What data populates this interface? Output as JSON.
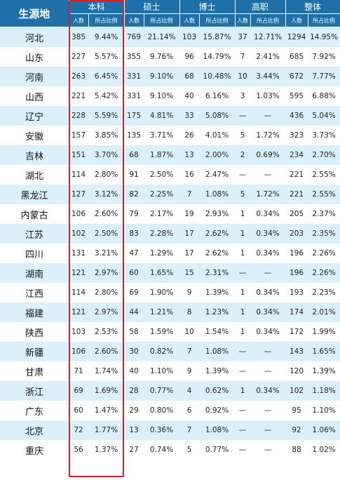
{
  "header": {
    "source_label": "生源地",
    "groups": [
      "本科",
      "硕士",
      "博士",
      "高职",
      "整体"
    ],
    "sub_count": "人数",
    "sub_ratio": "所占比例"
  },
  "highlight_color": "#d5202a",
  "header_color": "#1f70a8",
  "stripe_color": "#daf0fa",
  "rows": [
    {
      "province": "河北",
      "bk": [
        "385",
        "9.44%"
      ],
      "ss": [
        "769",
        "21.14%"
      ],
      "bs": [
        "103",
        "15.87%"
      ],
      "gz": [
        "37",
        "12.71%"
      ],
      "zt": [
        "1294",
        "14.95%"
      ]
    },
    {
      "province": "山东",
      "bk": [
        "227",
        "5.57%"
      ],
      "ss": [
        "355",
        "9.76%"
      ],
      "bs": [
        "96",
        "14.79%"
      ],
      "gz": [
        "7",
        "2.41%"
      ],
      "zt": [
        "685",
        "7.92%"
      ]
    },
    {
      "province": "河南",
      "bk": [
        "263",
        "6.45%"
      ],
      "ss": [
        "331",
        "9.10%"
      ],
      "bs": [
        "68",
        "10.48%"
      ],
      "gz": [
        "10",
        "3.44%"
      ],
      "zt": [
        "672",
        "7.77%"
      ]
    },
    {
      "province": "山西",
      "bk": [
        "221",
        "5.42%"
      ],
      "ss": [
        "331",
        "9.10%"
      ],
      "bs": [
        "40",
        "6.16%"
      ],
      "gz": [
        "3",
        "1.03%"
      ],
      "zt": [
        "595",
        "6.88%"
      ]
    },
    {
      "province": "辽宁",
      "bk": [
        "228",
        "5.59%"
      ],
      "ss": [
        "175",
        "4.81%"
      ],
      "bs": [
        "33",
        "5.08%"
      ],
      "gz": [
        "—",
        "—"
      ],
      "zt": [
        "436",
        "5.04%"
      ]
    },
    {
      "province": "安徽",
      "bk": [
        "157",
        "3.85%"
      ],
      "ss": [
        "135",
        "3.71%"
      ],
      "bs": [
        "26",
        "4.01%"
      ],
      "gz": [
        "5",
        "1.72%"
      ],
      "zt": [
        "323",
        "3.73%"
      ]
    },
    {
      "province": "吉林",
      "bk": [
        "151",
        "3.70%"
      ],
      "ss": [
        "68",
        "1.87%"
      ],
      "bs": [
        "13",
        "2.00%"
      ],
      "gz": [
        "2",
        "0.69%"
      ],
      "zt": [
        "234",
        "2.70%"
      ]
    },
    {
      "province": "湖北",
      "bk": [
        "114",
        "2.80%"
      ],
      "ss": [
        "91",
        "2.50%"
      ],
      "bs": [
        "16",
        "2.47%"
      ],
      "gz": [
        "—",
        "—"
      ],
      "zt": [
        "221",
        "2.55%"
      ]
    },
    {
      "province": "黑龙江",
      "bk": [
        "127",
        "3.12%"
      ],
      "ss": [
        "82",
        "2.25%"
      ],
      "bs": [
        "7",
        "1.08%"
      ],
      "gz": [
        "5",
        "1.72%"
      ],
      "zt": [
        "221",
        "2.55%"
      ]
    },
    {
      "province": "内蒙古",
      "bk": [
        "106",
        "2.60%"
      ],
      "ss": [
        "79",
        "2.17%"
      ],
      "bs": [
        "19",
        "2.93%"
      ],
      "gz": [
        "1",
        "0.34%"
      ],
      "zt": [
        "205",
        "2.37%"
      ]
    },
    {
      "province": "江苏",
      "bk": [
        "102",
        "2.50%"
      ],
      "ss": [
        "83",
        "2.28%"
      ],
      "bs": [
        "17",
        "2.62%"
      ],
      "gz": [
        "1",
        "0.34%"
      ],
      "zt": [
        "203",
        "2.35%"
      ]
    },
    {
      "province": "四川",
      "bk": [
        "131",
        "3.21%"
      ],
      "ss": [
        "47",
        "1.29%"
      ],
      "bs": [
        "17",
        "2.62%"
      ],
      "gz": [
        "1",
        "0.34%"
      ],
      "zt": [
        "196",
        "2.26%"
      ]
    },
    {
      "province": "湖南",
      "bk": [
        "121",
        "2.97%"
      ],
      "ss": [
        "60",
        "1.65%"
      ],
      "bs": [
        "15",
        "2.31%"
      ],
      "gz": [
        "—",
        "—"
      ],
      "zt": [
        "196",
        "2.26%"
      ]
    },
    {
      "province": "江西",
      "bk": [
        "114",
        "2.80%"
      ],
      "ss": [
        "69",
        "1.90%"
      ],
      "bs": [
        "9",
        "1.39%"
      ],
      "gz": [
        "1",
        "0.34%"
      ],
      "zt": [
        "193",
        "2.23%"
      ]
    },
    {
      "province": "福建",
      "bk": [
        "121",
        "2.97%"
      ],
      "ss": [
        "44",
        "1.21%"
      ],
      "bs": [
        "8",
        "1.23%"
      ],
      "gz": [
        "1",
        "0.34%"
      ],
      "zt": [
        "174",
        "2.01%"
      ]
    },
    {
      "province": "陕西",
      "bk": [
        "103",
        "2.53%"
      ],
      "ss": [
        "58",
        "1.59%"
      ],
      "bs": [
        "10",
        "1.54%"
      ],
      "gz": [
        "1",
        "0.34%"
      ],
      "zt": [
        "172",
        "1.99%"
      ]
    },
    {
      "province": "新疆",
      "bk": [
        "106",
        "2.60%"
      ],
      "ss": [
        "30",
        "0.82%"
      ],
      "bs": [
        "7",
        "1.08%"
      ],
      "gz": [
        "—",
        "—"
      ],
      "zt": [
        "143",
        "1.65%"
      ]
    },
    {
      "province": "甘肃",
      "bk": [
        "71",
        "1.74%"
      ],
      "ss": [
        "40",
        "1.10%"
      ],
      "bs": [
        "9",
        "1.39%"
      ],
      "gz": [
        "—",
        "—"
      ],
      "zt": [
        "120",
        "1.39%"
      ]
    },
    {
      "province": "浙江",
      "bk": [
        "69",
        "1.69%"
      ],
      "ss": [
        "28",
        "0.77%"
      ],
      "bs": [
        "4",
        "0.62%"
      ],
      "gz": [
        "1",
        "0.34%"
      ],
      "zt": [
        "102",
        "1.18%"
      ]
    },
    {
      "province": "广东",
      "bk": [
        "60",
        "1.47%"
      ],
      "ss": [
        "29",
        "0.80%"
      ],
      "bs": [
        "6",
        "0.92%"
      ],
      "gz": [
        "—",
        "—"
      ],
      "zt": [
        "95",
        "1.10%"
      ]
    },
    {
      "province": "北京",
      "bk": [
        "72",
        "1.77%"
      ],
      "ss": [
        "13",
        "0.36%"
      ],
      "bs": [
        "7",
        "1.08%"
      ],
      "gz": [
        "—",
        "—"
      ],
      "zt": [
        "92",
        "1.06%"
      ]
    },
    {
      "province": "重庆",
      "bk": [
        "56",
        "1.37%"
      ],
      "ss": [
        "27",
        "0.74%"
      ],
      "bs": [
        "5",
        "0.77%"
      ],
      "gz": [
        "—",
        "—"
      ],
      "zt": [
        "88",
        "1.02%"
      ]
    }
  ]
}
